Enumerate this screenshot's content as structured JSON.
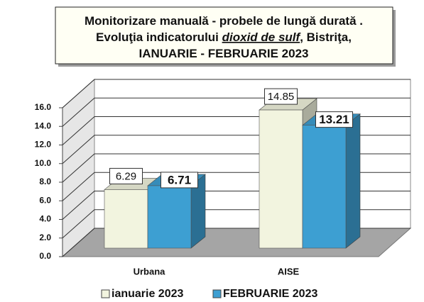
{
  "chart_data": {
    "type": "bar3d",
    "title_lines": [
      [
        {
          "text": "Monitorizare manuală - probele de lungă durată ."
        }
      ],
      [
        {
          "text": "Evoluţia indicatorului "
        },
        {
          "text": "dioxid de sulf",
          "style": "italic-underline"
        },
        {
          "text": ", Bistriţa,"
        }
      ],
      [
        {
          "text": "IANUARIE  - FEBRUARIE 2023"
        }
      ]
    ],
    "categories": [
      "Urbana",
      "AISE"
    ],
    "series": [
      {
        "name": "ianuarie 2023",
        "color": "#f2f4df",
        "values": [
          6.29,
          14.85
        ]
      },
      {
        "name": "FEBRUARIE 2023",
        "color": "#3d9fd2",
        "values": [
          6.71,
          13.21
        ]
      }
    ],
    "ylim": [
      0,
      16
    ],
    "yticks": [
      {
        "value": 0,
        "label": "0.0"
      },
      {
        "value": 2,
        "label": "2.0"
      },
      {
        "value": 4,
        "label": "4.0"
      },
      {
        "value": 6,
        "label": "6.0"
      },
      {
        "value": 8,
        "label": "8.0"
      },
      {
        "value": 10,
        "label": "10.0"
      },
      {
        "value": 12,
        "label": "12.0"
      },
      {
        "value": 14,
        "label": "14.0"
      },
      {
        "value": 16,
        "label": "16.0"
      }
    ],
    "grid": true,
    "legend": "bottom"
  }
}
